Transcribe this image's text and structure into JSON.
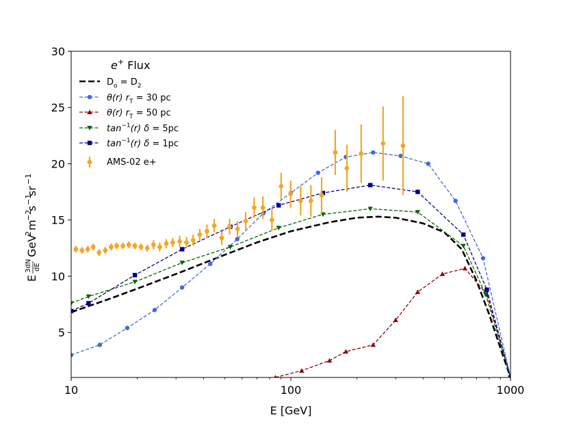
{
  "chart_data": {
    "type": "line",
    "title": "",
    "xscale": "log",
    "xlim": [
      10,
      1000
    ],
    "ylim": [
      1,
      30
    ],
    "xlabel": "E [GeV]",
    "ylabel_parts": [
      "E",
      "3dN",
      "dE",
      "GeV",
      "2",
      "m",
      "−2",
      "s",
      "−1",
      "sr",
      "−1"
    ],
    "x_ticks": [
      10,
      100,
      1000
    ],
    "x_tick_labels": [
      "10",
      "100",
      "1000"
    ],
    "y_ticks": [
      5,
      10,
      15,
      20,
      25,
      30
    ],
    "y_tick_labels": [
      "5",
      "10",
      "15",
      "20",
      "25",
      "30"
    ],
    "legend": {
      "title": "e",
      "title_sup": "+",
      "title_rest": " Flux",
      "placement": "upper-left",
      "entries": [
        {
          "id": "d0",
          "parts": [
            "D",
            "o",
            " = D",
            "2"
          ]
        },
        {
          "id": "theta30",
          "parts": [
            "θ(r)",
            " r",
            "T",
            " = 30 pc"
          ]
        },
        {
          "id": "theta50",
          "parts": [
            "θ(r)",
            " r",
            "T",
            " = 50 pc"
          ]
        },
        {
          "id": "tan5",
          "parts": [
            "tan",
            "−1",
            "(r) ",
            "δ",
            " = 5pc"
          ]
        },
        {
          "id": "tan1",
          "parts": [
            "tan",
            "−1",
            "(r) ",
            "δ",
            " = 1pc"
          ]
        },
        {
          "id": "ams",
          "parts": [
            "AMS-02 e+"
          ]
        }
      ]
    },
    "series": [
      {
        "id": "d0",
        "name": "Do = D2",
        "color": "#000000",
        "style": "dashed-thick",
        "marker": "none",
        "x": [
          10,
          15,
          20,
          30,
          50,
          70,
          100,
          150,
          200,
          250,
          300,
          400,
          500,
          600,
          700,
          800,
          900,
          1000
        ],
        "y": [
          6.8,
          8.0,
          8.9,
          10.2,
          11.9,
          13.0,
          14.0,
          14.8,
          15.2,
          15.3,
          15.2,
          14.7,
          13.9,
          12.4,
          9.6,
          6.6,
          3.6,
          1.0
        ]
      },
      {
        "id": "theta30",
        "name": "θ(r) rT = 30 pc",
        "color": "#4169e1",
        "style": "dashed",
        "marker": "circle",
        "x": [
          10,
          13.5,
          18,
          24,
          32,
          43,
          57,
          75,
          100,
          133,
          178,
          237,
          316,
          422,
          562,
          750,
          1000
        ],
        "y": [
          3.0,
          3.9,
          5.4,
          7.0,
          9.0,
          11.1,
          13.3,
          15.6,
          17.4,
          19.2,
          20.6,
          21.0,
          20.7,
          20.0,
          16.7,
          11.6,
          1.0
        ]
      },
      {
        "id": "theta50",
        "name": "θ(r) rT = 50 pc",
        "color": "#8b0000",
        "style": "dashed",
        "marker": "triangle-up",
        "x": [
          85,
          112,
          150,
          178,
          237,
          300,
          378,
          490,
          620,
          780,
          1000
        ],
        "y": [
          1.0,
          1.6,
          2.5,
          3.3,
          3.9,
          6.1,
          8.6,
          10.2,
          10.7,
          8.4,
          1.0
        ]
      },
      {
        "id": "tan5",
        "name": "tan−1(r) δ = 5pc",
        "color": "#006400",
        "style": "dashed",
        "marker": "triangle-down",
        "x": [
          10,
          12,
          19.5,
          32,
          53,
          88,
          140,
          230,
          378,
          610,
          770,
          1000
        ],
        "y": [
          7.6,
          8.2,
          9.5,
          11.2,
          12.6,
          14.3,
          15.5,
          16.0,
          15.7,
          12.7,
          8.4,
          1.0
        ]
      },
      {
        "id": "tan1",
        "name": "tan−1(r) δ = 1pc",
        "color": "#00008b",
        "style": "dashed",
        "marker": "square",
        "x": [
          10,
          12,
          19.5,
          32,
          53,
          88,
          140,
          230,
          378,
          610,
          780,
          1000
        ],
        "y": [
          6.9,
          7.6,
          10.1,
          12.4,
          14.4,
          16.3,
          17.4,
          18.1,
          17.5,
          13.7,
          8.8,
          1.0
        ]
      },
      {
        "id": "ams",
        "name": "AMS-02 e+",
        "color": "#f5a623",
        "style": "errorbar",
        "marker": "circle",
        "x": [
          10.5,
          11.2,
          11.9,
          12.6,
          13.4,
          14.3,
          15.2,
          16.1,
          17.2,
          18.3,
          19.5,
          20.8,
          22.2,
          23.7,
          25.3,
          27.1,
          29.0,
          31.2,
          33.5,
          35.9,
          38.5,
          41.5,
          44.8,
          48.5,
          52.6,
          57.2,
          62.3,
          68.1,
          74.6,
          82.0,
          90.3,
          99.8,
          110.8,
          123.4,
          138.1,
          159.3,
          180.0,
          209.0,
          263.0,
          324.0
        ],
        "y": [
          12.4,
          12.3,
          12.4,
          12.6,
          12.1,
          12.3,
          12.6,
          12.7,
          12.7,
          12.8,
          12.7,
          12.6,
          12.5,
          12.8,
          12.6,
          12.9,
          13.0,
          13.1,
          13.0,
          13.2,
          13.7,
          14.0,
          14.5,
          13.4,
          14.4,
          14.2,
          14.9,
          16.1,
          16.1,
          15.0,
          18.0,
          17.3,
          16.7,
          16.7,
          17.2,
          21.0,
          19.6,
          20.9,
          21.8,
          21.6
        ],
        "err": [
          0.3,
          0.3,
          0.3,
          0.3,
          0.3,
          0.3,
          0.3,
          0.3,
          0.3,
          0.3,
          0.3,
          0.3,
          0.3,
          0.4,
          0.4,
          0.4,
          0.4,
          0.5,
          0.5,
          0.5,
          0.5,
          0.6,
          0.6,
          0.6,
          0.7,
          0.7,
          0.8,
          0.9,
          1.0,
          1.0,
          1.2,
          1.2,
          1.3,
          1.4,
          1.6,
          2.0,
          2.1,
          2.6,
          3.3,
          4.4
        ]
      }
    ]
  }
}
